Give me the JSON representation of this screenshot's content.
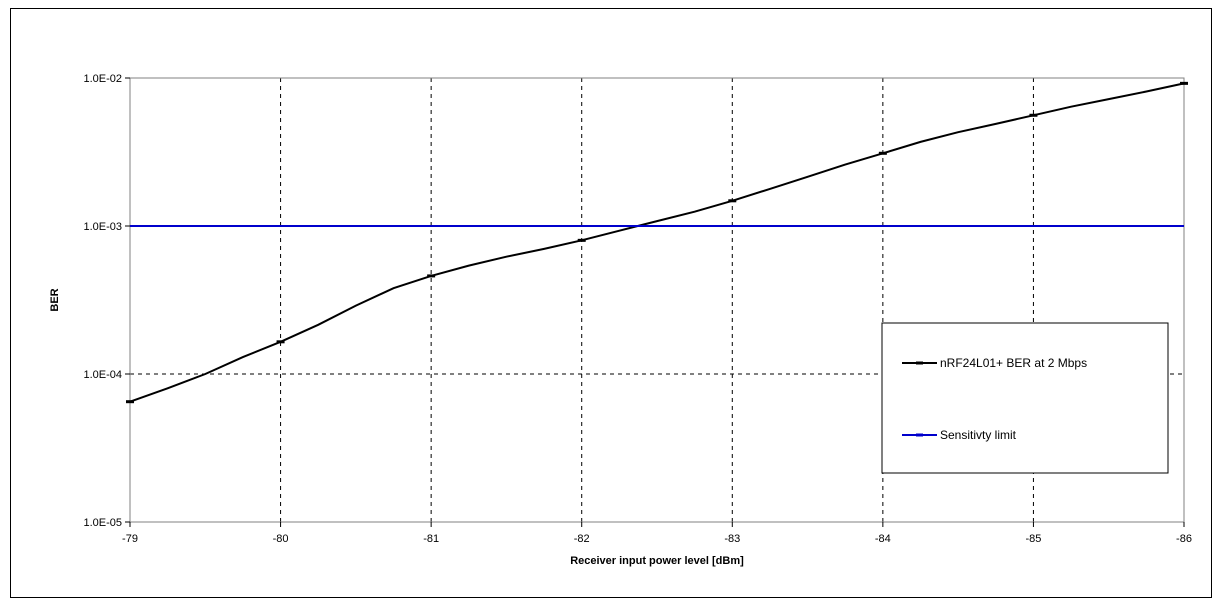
{
  "chart_data": {
    "type": "line",
    "xlabel": "Receiver input power level [dBm]",
    "ylabel": "BER",
    "x_ticks": [
      -79,
      -80,
      -81,
      -82,
      -83,
      -84,
      -85,
      -86
    ],
    "xlim": [
      -79,
      -86
    ],
    "y_scale": "log",
    "ylim": [
      1e-05,
      0.01
    ],
    "y_tick_values": [
      1e-05,
      0.0001,
      0.001,
      0.01
    ],
    "y_tick_labels": [
      "1.0E-05",
      "1.0E-04",
      "1.0E-03",
      "1.0E-02"
    ],
    "grid": "dashed",
    "legend_position": "right",
    "series": [
      {
        "name": "nRF24L01+ BER at 2 Mbps",
        "color": "#000000",
        "marker": "dash",
        "x": [
          -79,
          -79.25,
          -79.5,
          -79.75,
          -80,
          -80.25,
          -80.5,
          -80.75,
          -81,
          -81.25,
          -81.5,
          -81.75,
          -82,
          -82.25,
          -82.5,
          -82.75,
          -83,
          -83.25,
          -83.5,
          -83.75,
          -84,
          -84.25,
          -84.5,
          -84.75,
          -85,
          -85.25,
          -85.5,
          -85.75,
          -86
        ],
        "y": [
          6.5e-05,
          8e-05,
          0.0001,
          0.00013,
          0.000165,
          0.000215,
          0.00029,
          0.00038,
          0.00046,
          0.00054,
          0.00062,
          0.0007,
          0.0008,
          0.00093,
          0.00108,
          0.00125,
          0.00148,
          0.00178,
          0.00215,
          0.0026,
          0.0031,
          0.0037,
          0.0043,
          0.0049,
          0.0056,
          0.0064,
          0.0072,
          0.0081,
          0.0092
        ],
        "marker_x": [
          -79,
          -80,
          -81,
          -82,
          -83,
          -84,
          -85,
          -86
        ]
      },
      {
        "name": "Sensitivty limit",
        "color": "#0000cc",
        "x": [
          -79,
          -86
        ],
        "y": [
          0.001,
          0.001
        ]
      }
    ]
  }
}
